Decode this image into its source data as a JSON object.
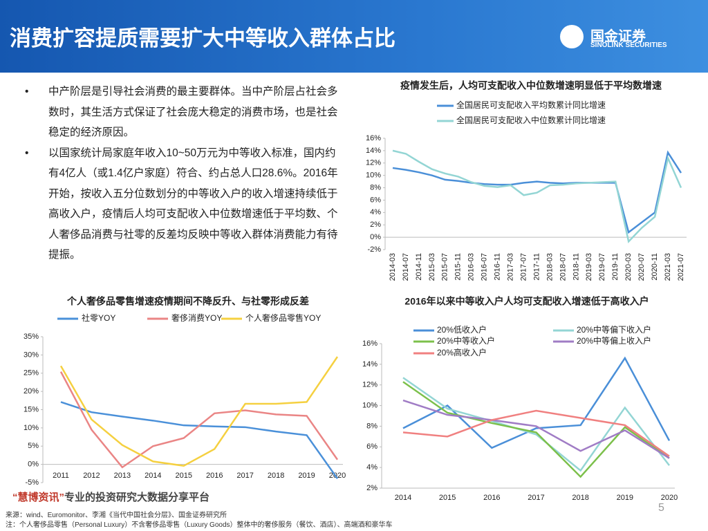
{
  "header": {
    "title": "消费扩容提质需要扩大中等收入群体占比"
  },
  "logo": {
    "name": "国金证券",
    "sub": "SINOLINK SECURITIES"
  },
  "bullets": [
    "中产阶层是引导社会消费的最主要群体。当中产阶层占社会多数时，其生活方式保证了社会庞大稳定的消费市场，也是社会稳定的经济原因。",
    "以国家统计局家庭年收入10~50万元为中等收入标准，国内约有4亿人（或1.4亿户家庭）符合、约占总人口28.6%。2016年开始，按收入五分位数划分的中等收入户的收入增速持续低于高收入户，疫情后人均可支配收入中位数增速低于平均数、个人奢侈品消费与社零的反差均反映中等收入群体消费能力有待提振。"
  ],
  "watermark": {
    "brand": "“慧博资讯”",
    "slogan": "专业的投资研究大数据分享平台"
  },
  "footer": {
    "source": "来源：wind、Euromonitor、李湘《当代中国社会分层》、国金证券研究所",
    "note": "注：个人奢侈品零售（Personal Luxury）不含奢侈品零售（Luxury Goods）整体中的奢侈服务（餐饮、酒店）、高端酒和豪华车"
  },
  "page_number": "5",
  "chart_data": [
    {
      "type": "line",
      "title": "疫情发生后，人均可支配收入中位数增速明显低于平均数增速",
      "categories": [
        "2014-03",
        "2014-07",
        "2014-11",
        "2015-03",
        "2015-07",
        "2015-11",
        "2016-03",
        "2016-07",
        "2016-11",
        "2017-03",
        "2017-07",
        "2017-11",
        "2018-03",
        "2018-07",
        "2018-11",
        "2019-03",
        "2019-07",
        "2019-11",
        "2020-03",
        "2020-07",
        "2020-11",
        "2021-03",
        "2021-07"
      ],
      "series": [
        {
          "name": "全国居民可支配收入平均数累计同比增速",
          "color": "#4a8fd8",
          "values": [
            11.2,
            10.9,
            10.5,
            10.0,
            9.3,
            9.1,
            8.8,
            8.6,
            8.5,
            8.5,
            8.8,
            9.0,
            8.8,
            8.7,
            8.8,
            8.8,
            8.8,
            8.8,
            0.8,
            2.4,
            4.0,
            13.7,
            10.4
          ]
        },
        {
          "name": "全国居民可支配收入中位数累计同比增速",
          "color": "#93d5d4",
          "values": [
            14.0,
            13.5,
            12.2,
            11.0,
            10.3,
            9.8,
            8.9,
            8.3,
            8.1,
            8.4,
            6.8,
            7.2,
            8.4,
            8.5,
            8.7,
            8.8,
            8.9,
            9.0,
            -0.7,
            1.5,
            3.3,
            12.8,
            8.0
          ]
        }
      ],
      "ylim": [
        -2,
        16
      ],
      "yticks": [
        {
          "value": -2,
          "label": "-2%"
        },
        {
          "value": 0,
          "label": "0%"
        },
        {
          "value": 2,
          "label": "2%"
        },
        {
          "value": 4,
          "label": "4%"
        },
        {
          "value": 6,
          "label": "6%"
        },
        {
          "value": 8,
          "label": "8%"
        },
        {
          "value": 10,
          "label": "10%"
        },
        {
          "value": 12,
          "label": "12%"
        },
        {
          "value": 14,
          "label": "14%"
        },
        {
          "value": 16,
          "label": "16%"
        }
      ]
    },
    {
      "type": "line",
      "title": "个人奢侈品零售增速疫情期间不降反升、与社零形成反差",
      "categories": [
        "2011",
        "2012",
        "2013",
        "2014",
        "2015",
        "2016",
        "2017",
        "2018",
        "2019",
        "2020"
      ],
      "series": [
        {
          "name": "社零YOY",
          "color": "#4a90d9",
          "values": [
            17.1,
            14.3,
            13.1,
            12.0,
            10.7,
            10.4,
            10.2,
            9.0,
            8.0,
            -3.9
          ]
        },
        {
          "name": "奢侈消费YOY",
          "color": "#ea8585",
          "values": [
            25.4,
            9.5,
            -0.8,
            5.0,
            7.2,
            14.0,
            14.8,
            13.7,
            13.3,
            1.3
          ]
        },
        {
          "name": "个人奢侈品零售YOY",
          "color": "#f5d040",
          "values": [
            27.0,
            12.3,
            5.3,
            0.8,
            -0.4,
            4.2,
            16.6,
            16.6,
            17.1,
            29.5
          ]
        }
      ],
      "ylim": [
        -5,
        35
      ],
      "yticks": [
        {
          "value": -5,
          "label": "-5%"
        },
        {
          "value": 0,
          "label": "0%"
        },
        {
          "value": 5,
          "label": "5%"
        },
        {
          "value": 10,
          "label": "10%"
        },
        {
          "value": 15,
          "label": "15%"
        },
        {
          "value": 20,
          "label": "20%"
        },
        {
          "value": 25,
          "label": "25%"
        },
        {
          "value": 30,
          "label": "30%"
        },
        {
          "value": 35,
          "label": "35%"
        }
      ]
    },
    {
      "type": "line",
      "title": "2016年以来中等收入户人均可支配收入增速低于高收入户",
      "categories": [
        "2014",
        "2015",
        "2016",
        "2017",
        "2018",
        "2019",
        "2020"
      ],
      "series": [
        {
          "name": "20%低收入户",
          "color": "#4a8fd8",
          "values": [
            7.8,
            10.0,
            5.9,
            7.8,
            8.1,
            14.6,
            6.6
          ]
        },
        {
          "name": "20%中等偏下收入户",
          "color": "#93d5d4",
          "values": [
            12.7,
            9.7,
            8.5,
            7.2,
            3.7,
            9.8,
            4.2
          ]
        },
        {
          "name": "20%中等收入户",
          "color": "#7cc04b",
          "values": [
            12.3,
            9.3,
            8.3,
            7.4,
            3.1,
            7.9,
            4.9
          ]
        },
        {
          "name": "20%中等偏上收入户",
          "color": "#a07cc5",
          "values": [
            10.5,
            9.1,
            8.6,
            8.0,
            5.6,
            7.6,
            4.9
          ]
        },
        {
          "name": "20%高收入户",
          "color": "#f08080",
          "values": [
            7.4,
            7.0,
            8.6,
            9.5,
            8.8,
            8.1,
            5.1
          ]
        }
      ],
      "ylim": [
        2,
        16
      ],
      "yticks": [
        {
          "value": 2,
          "label": "2%"
        },
        {
          "value": 4,
          "label": "4%"
        },
        {
          "value": 6,
          "label": "6%"
        },
        {
          "value": 8,
          "label": "8%"
        },
        {
          "value": 10,
          "label": "10%"
        },
        {
          "value": 12,
          "label": "12%"
        },
        {
          "value": 14,
          "label": "14%"
        },
        {
          "value": 16,
          "label": "16%"
        }
      ]
    }
  ]
}
